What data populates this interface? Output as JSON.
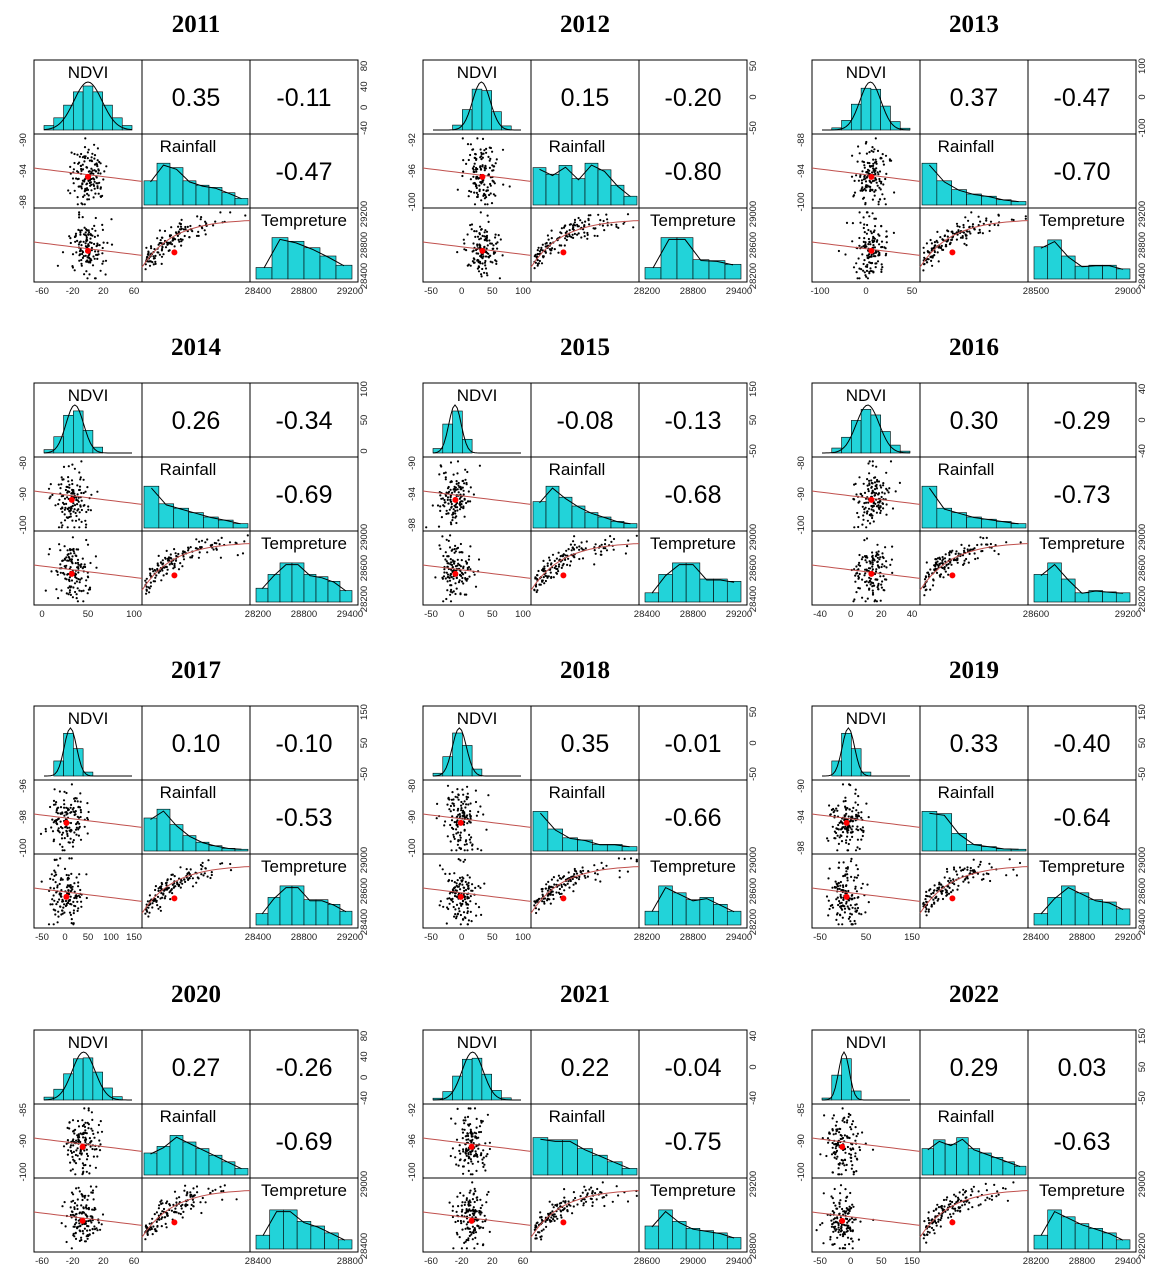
{
  "chart_data": [
    {
      "type": "scatter",
      "title": "2011",
      "variables": [
        "NDVI",
        "Rainfall",
        "Tempreture"
      ],
      "correlations": {
        "NDVI_Rainfall": "0.35",
        "NDVI_Tempreture": "-0.11",
        "Rainfall_Tempreture": "-0.47"
      },
      "ticks": {
        "ndvi_x": [
          "-60",
          "-20",
          "20",
          "60"
        ],
        "rainfall_x": [],
        "temp_x": [
          "28400",
          "28800",
          "29200"
        ],
        "ndvi_y": [
          "80",
          "40",
          "0",
          "-40"
        ],
        "rainfall_y": [
          "-90",
          "-94",
          "-98"
        ],
        "temp_y": [
          "29200",
          "28800",
          "28400"
        ]
      },
      "ndvi_peak": 0.5,
      "ndvi_spread": 0.16,
      "rainfall_hist": [
        0.55,
        0.95,
        0.85,
        0.55,
        0.45,
        0.4,
        0.28,
        0.15
      ],
      "temp_hist": [
        0.25,
        0.9,
        0.82,
        0.68,
        0.5,
        0.3
      ],
      "scatter_ndvi_center": 0.5,
      "rain_temp_trend": "down"
    },
    {
      "type": "scatter",
      "title": "2012",
      "variables": [
        "NDVI",
        "Rainfall",
        "Tempreture"
      ],
      "correlations": {
        "NDVI_Rainfall": "0.15",
        "NDVI_Tempreture": "-0.20",
        "Rainfall_Tempreture": "-0.80"
      },
      "ticks": {
        "ndvi_x": [
          "-50",
          "0",
          "50",
          "100"
        ],
        "rainfall_x": [],
        "temp_x": [
          "28200",
          "28800",
          "29400"
        ],
        "ndvi_y": [
          "50",
          "0",
          "-50"
        ],
        "rainfall_y": [
          "-92",
          "-96",
          "-100"
        ],
        "temp_y": [
          "29000",
          "28600",
          "28200"
        ]
      },
      "ndvi_peak": 0.55,
      "ndvi_spread": 0.1,
      "rainfall_hist": [
        0.85,
        0.7,
        0.9,
        0.6,
        0.95,
        0.8,
        0.45,
        0.2
      ],
      "temp_hist": [
        0.25,
        0.9,
        0.9,
        0.42,
        0.4,
        0.32
      ],
      "scatter_ndvi_center": 0.55,
      "rain_temp_trend": "down"
    },
    {
      "type": "scatter",
      "title": "2013",
      "variables": [
        "NDVI",
        "Rainfall",
        "Tempreture"
      ],
      "correlations": {
        "NDVI_Rainfall": "0.37",
        "NDVI_Tempreture": "-0.47",
        "Rainfall_Tempreture": "-0.70"
      },
      "ticks": {
        "ndvi_x": [
          "-100",
          "0",
          "50"
        ],
        "rainfall_x": [],
        "temp_x": [
          "28500",
          "29000"
        ],
        "ndvi_y": [
          "100",
          "0",
          "-100"
        ],
        "rainfall_y": [
          "-88",
          "-94",
          "-100"
        ],
        "temp_y": [
          "29200",
          "28800",
          "28400"
        ]
      },
      "ndvi_peak": 0.55,
      "ndvi_spread": 0.12,
      "rainfall_hist": [
        0.95,
        0.55,
        0.35,
        0.25,
        0.2,
        0.12,
        0.08
      ],
      "temp_hist": [
        0.7,
        0.85,
        0.5,
        0.28,
        0.3,
        0.3,
        0.22
      ],
      "scatter_ndvi_center": 0.55,
      "rain_temp_trend": "down"
    },
    {
      "type": "scatter",
      "title": "2014",
      "variables": [
        "NDVI",
        "Rainfall",
        "Tempreture"
      ],
      "correlations": {
        "NDVI_Rainfall": "0.26",
        "NDVI_Tempreture": "-0.34",
        "Rainfall_Tempreture": "-0.69"
      },
      "ticks": {
        "ndvi_x": [
          "0",
          "50",
          "100"
        ],
        "rainfall_x": [],
        "temp_x": [
          "28200",
          "28800",
          "29400"
        ],
        "ndvi_y": [
          "100",
          "50",
          "0"
        ],
        "rainfall_y": [
          "-80",
          "-90",
          "-100"
        ],
        "temp_y": [
          "29000",
          "28600",
          "28200"
        ]
      },
      "ndvi_peak": 0.35,
      "ndvi_spread": 0.1,
      "rainfall_hist": [
        0.95,
        0.55,
        0.45,
        0.35,
        0.25,
        0.18,
        0.1
      ],
      "temp_hist": [
        0.3,
        0.6,
        0.85,
        0.85,
        0.6,
        0.55,
        0.45,
        0.25
      ],
      "scatter_ndvi_center": 0.35,
      "rain_temp_trend": "down"
    },
    {
      "type": "scatter",
      "title": "2015",
      "variables": [
        "NDVI",
        "Rainfall",
        "Tempreture"
      ],
      "correlations": {
        "NDVI_Rainfall": "-0.08",
        "NDVI_Tempreture": "-0.13",
        "Rainfall_Tempreture": "-0.68"
      },
      "ticks": {
        "ndvi_x": [
          "-50",
          "0",
          "50",
          "100"
        ],
        "rainfall_x": [],
        "temp_x": [
          "28400",
          "28800",
          "29200"
        ],
        "ndvi_y": [
          "150",
          "50",
          "-50"
        ],
        "rainfall_y": [
          "-90",
          "-94",
          "-98"
        ],
        "temp_y": [
          "29000",
          "28600",
          "28400"
        ]
      },
      "ndvi_peak": 0.25,
      "ndvi_spread": 0.07,
      "rainfall_hist": [
        0.6,
        0.95,
        0.7,
        0.5,
        0.35,
        0.25,
        0.15,
        0.1
      ],
      "temp_hist": [
        0.2,
        0.6,
        0.85,
        0.85,
        0.5,
        0.5,
        0.45
      ],
      "scatter_ndvi_center": 0.3,
      "rain_temp_trend": "down"
    },
    {
      "type": "scatter",
      "title": "2016",
      "variables": [
        "NDVI",
        "Rainfall",
        "Tempreture"
      ],
      "correlations": {
        "NDVI_Rainfall": "0.30",
        "NDVI_Tempreture": "-0.29",
        "Rainfall_Tempreture": "-0.73"
      },
      "ticks": {
        "ndvi_x": [
          "-40",
          "0",
          "20",
          "40"
        ],
        "rainfall_x": [],
        "temp_x": [
          "28600",
          "29200"
        ],
        "ndvi_y": [
          "40",
          "0",
          "-40"
        ],
        "rainfall_y": [
          "-80",
          "-90",
          "-100"
        ],
        "temp_y": [
          "29000",
          "28600",
          "28200"
        ]
      },
      "ndvi_peak": 0.52,
      "ndvi_spread": 0.13,
      "rainfall_hist": [
        0.95,
        0.45,
        0.35,
        0.25,
        0.2,
        0.15,
        0.1
      ],
      "temp_hist": [
        0.6,
        0.85,
        0.5,
        0.2,
        0.25,
        0.22,
        0.2
      ],
      "scatter_ndvi_center": 0.55,
      "rain_temp_trend": "down"
    },
    {
      "type": "scatter",
      "title": "2017",
      "variables": [
        "NDVI",
        "Rainfall",
        "Tempreture"
      ],
      "correlations": {
        "NDVI_Rainfall": "0.10",
        "NDVI_Tempreture": "-0.10",
        "Rainfall_Tempreture": "-0.53"
      },
      "ticks": {
        "ndvi_x": [
          "-50",
          "0",
          "50",
          "100",
          "150"
        ],
        "rainfall_x": [],
        "temp_x": [
          "28400",
          "28800",
          "29200"
        ],
        "ndvi_y": [
          "150",
          "50",
          "-50"
        ],
        "rainfall_y": [
          "-96",
          "-98",
          "-100"
        ],
        "temp_y": [
          "29000",
          "28600",
          "28400"
        ]
      },
      "ndvi_peak": 0.3,
      "ndvi_spread": 0.07,
      "rainfall_hist": [
        0.75,
        0.95,
        0.6,
        0.35,
        0.2,
        0.12,
        0.06,
        0.04
      ],
      "temp_hist": [
        0.25,
        0.6,
        0.85,
        0.85,
        0.55,
        0.55,
        0.45,
        0.3
      ],
      "scatter_ndvi_center": 0.3,
      "rain_temp_trend": "down"
    },
    {
      "type": "scatter",
      "title": "2018",
      "variables": [
        "NDVI",
        "Rainfall",
        "Tempreture"
      ],
      "correlations": {
        "NDVI_Rainfall": "0.35",
        "NDVI_Tempreture": "-0.01",
        "Rainfall_Tempreture": "-0.66"
      },
      "ticks": {
        "ndvi_x": [
          "-50",
          "0",
          "50",
          "100"
        ],
        "rainfall_x": [],
        "temp_x": [
          "28200",
          "28800",
          "29400"
        ],
        "ndvi_y": [
          "50",
          "0",
          "-50"
        ],
        "rainfall_y": [
          "-80",
          "-90",
          "-100"
        ],
        "temp_y": [
          "29000",
          "28600",
          "28200"
        ]
      },
      "ndvi_peak": 0.3,
      "ndvi_spread": 0.08,
      "rainfall_hist": [
        0.9,
        0.5,
        0.3,
        0.25,
        0.15,
        0.15,
        0.1
      ],
      "temp_hist": [
        0.3,
        0.85,
        0.7,
        0.55,
        0.6,
        0.45,
        0.3
      ],
      "scatter_ndvi_center": 0.35,
      "rain_temp_trend": "down"
    },
    {
      "type": "scatter",
      "title": "2019",
      "variables": [
        "NDVI",
        "Rainfall",
        "Tempreture"
      ],
      "correlations": {
        "NDVI_Rainfall": "0.33",
        "NDVI_Tempreture": "-0.40",
        "Rainfall_Tempreture": "-0.64"
      },
      "ticks": {
        "ndvi_x": [
          "-50",
          "50",
          "150"
        ],
        "rainfall_x": [],
        "temp_x": [
          "28400",
          "28800",
          "29200"
        ],
        "ndvi_y": [
          "150",
          "50",
          "-50"
        ],
        "rainfall_y": [
          "-90",
          "-94",
          "-98"
        ],
        "temp_y": [
          "29000",
          "28600",
          "28400"
        ]
      },
      "ndvi_peak": 0.3,
      "ndvi_spread": 0.07,
      "rainfall_hist": [
        0.9,
        0.85,
        0.4,
        0.15,
        0.1,
        0.05,
        0.04
      ],
      "temp_hist": [
        0.25,
        0.6,
        0.85,
        0.7,
        0.55,
        0.5,
        0.35
      ],
      "scatter_ndvi_center": 0.32,
      "rain_temp_trend": "down"
    },
    {
      "type": "scatter",
      "title": "2020",
      "variables": [
        "NDVI",
        "Rainfall",
        "Tempreture"
      ],
      "correlations": {
        "NDVI_Rainfall": "0.27",
        "NDVI_Tempreture": "-0.26",
        "Rainfall_Tempreture": "-0.69"
      },
      "ticks": {
        "ndvi_x": [
          "-60",
          "-20",
          "20",
          "60"
        ],
        "rainfall_x": [],
        "temp_x": [
          "28400",
          "28800"
        ],
        "ndvi_y": [
          "80",
          "40",
          "0",
          "-40"
        ],
        "rainfall_y": [
          "-85",
          "-90",
          "-100"
        ],
        "temp_y": [
          "29000",
          "28400"
        ]
      },
      "ndvi_peak": 0.45,
      "ndvi_spread": 0.13,
      "rainfall_hist": [
        0.5,
        0.65,
        0.9,
        0.75,
        0.6,
        0.45,
        0.3,
        0.15
      ],
      "temp_hist": [
        0.3,
        0.85,
        0.85,
        0.6,
        0.5,
        0.35,
        0.2
      ],
      "scatter_ndvi_center": 0.45,
      "rain_temp_trend": "down"
    },
    {
      "type": "scatter",
      "title": "2021",
      "variables": [
        "NDVI",
        "Rainfall",
        "Tempreture"
      ],
      "correlations": {
        "NDVI_Rainfall": "0.22",
        "NDVI_Tempreture": "-0.04",
        "Rainfall_Tempreture": "-0.75"
      },
      "ticks": {
        "ndvi_x": [
          "-60",
          "-20",
          "20",
          "60"
        ],
        "rainfall_x": [],
        "temp_x": [
          "28600",
          "29000",
          "29400"
        ],
        "ndvi_y": [
          "40",
          "0",
          "-40"
        ],
        "rainfall_y": [
          "-92",
          "-96",
          "-100"
        ],
        "temp_y": [
          "29200",
          "28800"
        ]
      },
      "ndvi_peak": 0.45,
      "ndvi_spread": 0.12,
      "rainfall_hist": [
        0.85,
        0.8,
        0.8,
        0.6,
        0.45,
        0.3,
        0.15
      ],
      "temp_hist": [
        0.5,
        0.85,
        0.6,
        0.45,
        0.4,
        0.35,
        0.25
      ],
      "scatter_ndvi_center": 0.45,
      "rain_temp_trend": "down"
    },
    {
      "type": "scatter",
      "title": "2022",
      "variables": [
        "NDVI",
        "Rainfall",
        "Tempreture"
      ],
      "correlations": {
        "NDVI_Rainfall": "0.29",
        "NDVI_Tempreture": "0.03",
        "Rainfall_Tempreture": "-0.63"
      },
      "ticks": {
        "ndvi_x": [
          "-50",
          "0",
          "50",
          "150"
        ],
        "rainfall_x": [],
        "temp_x": [
          "28200",
          "28800",
          "29400"
        ],
        "ndvi_y": [
          "150",
          "50",
          "-50"
        ],
        "rainfall_y": [
          "-85",
          "-90",
          "-100"
        ],
        "temp_y": [
          "29000",
          "28200"
        ]
      },
      "ndvi_peak": 0.25,
      "ndvi_spread": 0.06,
      "rainfall_hist": [
        0.6,
        0.8,
        0.7,
        0.85,
        0.6,
        0.5,
        0.4,
        0.3,
        0.2
      ],
      "temp_hist": [
        0.3,
        0.85,
        0.7,
        0.55,
        0.45,
        0.35,
        0.2
      ],
      "scatter_ndvi_center": 0.28,
      "rain_temp_trend": "down"
    }
  ],
  "colors": {
    "hist_fill": "#22d3d9",
    "hist_stroke": "#000000",
    "points": "#000000",
    "lowess": "#c0504d",
    "center": "#ff0000"
  }
}
